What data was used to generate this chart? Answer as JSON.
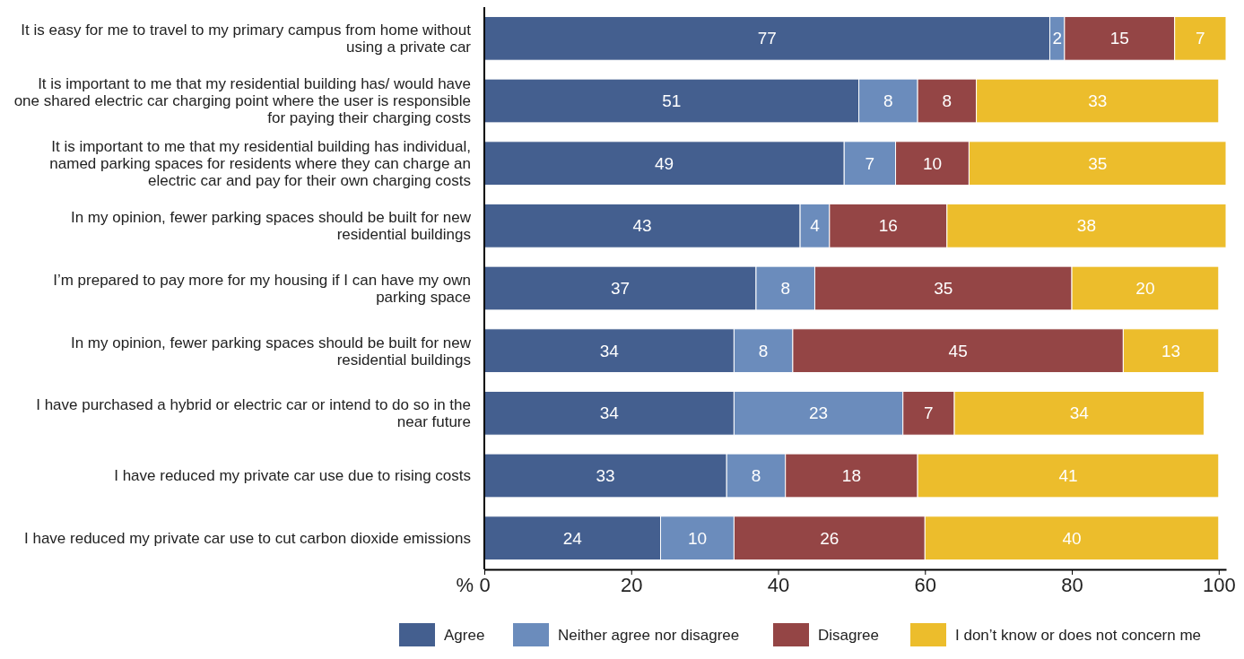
{
  "chart_data": {
    "type": "bar",
    "orientation": "horizontal",
    "stacked": true,
    "data_labels": true,
    "legend": "bottom",
    "grid": false,
    "xlabel": "%",
    "categories": [
      "It is easy for me to travel to my primary campus from home without using a private car",
      "It is important to me that my residential building has/ would have one shared electric car charging point where the user is responsible for paying their charging costs",
      "It is important to me that my residential building has individual, named parking spaces for residents where they can charge an electric car and pay for their own charging costs",
      "In my opinion, fewer parking spaces should be built for new residential buildings",
      "I’m prepared to pay more for my housing if I can have my own parking space",
      "In my opinion, fewer parking spaces should be built for new residential buildings",
      "I have purchased a hybrid or electric car or intend to do so in the near future",
      "I have reduced my private car use due to rising costs",
      "I have reduced my private car use to cut carbon dioxide emissions"
    ],
    "xlim": [
      0,
      101
    ],
    "xticks": [
      0,
      20,
      40,
      60,
      80,
      100
    ],
    "series": [
      {
        "name": "Agree",
        "color": "#445f8f",
        "values": [
          77,
          51,
          49,
          43,
          37,
          34,
          34,
          33,
          24
        ]
      },
      {
        "name": "Neither agree nor disagree",
        "color": "#6b8cbc",
        "values": [
          2,
          8,
          7,
          4,
          8,
          8,
          23,
          8,
          10
        ]
      },
      {
        "name": "Disagree",
        "color": "#944545",
        "values": [
          15,
          8,
          10,
          16,
          35,
          45,
          7,
          18,
          26
        ]
      },
      {
        "name": "I don’t know or does not concern me",
        "color": "#ecbd2c",
        "values": [
          7,
          33,
          35,
          38,
          20,
          13,
          34,
          41,
          40
        ]
      }
    ]
  }
}
